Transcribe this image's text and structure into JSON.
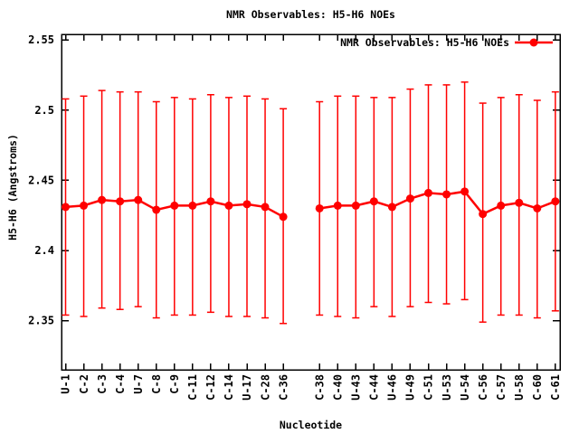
{
  "chart_data": {
    "type": "line",
    "title": "NMR Observables: H5-H6 NOEs",
    "xlabel": "Nucleotide",
    "ylabel": "H5-H6 (Angstroms)",
    "legend": {
      "label": "NMR Observables: H5-H6 NOEs",
      "position": "top-right-inside"
    },
    "grid": false,
    "background": "#ffffff",
    "axis_color": "#000000",
    "series_color": "#ff0000",
    "ylim": [
      2.315,
      2.554
    ],
    "yticks": [
      2.35,
      2.4,
      2.45,
      2.5,
      2.55
    ],
    "ytick_labels": [
      "2.35",
      "2.4",
      "2.45",
      "2.5",
      "2.55"
    ],
    "n_slots": 28,
    "gap_after": "C-36",
    "categories": [
      "U-1",
      "C-2",
      "C-3",
      "C-4",
      "U-7",
      "C-8",
      "C-9",
      "C-11",
      "C-12",
      "C-14",
      "U-17",
      "C-28",
      "C-36",
      "C-38",
      "C-40",
      "U-43",
      "C-44",
      "U-46",
      "U-49",
      "C-51",
      "U-53",
      "U-54",
      "C-56",
      "C-57",
      "U-58",
      "C-60",
      "C-61"
    ],
    "slots": [
      0,
      1,
      2,
      3,
      4,
      5,
      6,
      7,
      8,
      9,
      10,
      11,
      12,
      14,
      15,
      16,
      17,
      18,
      19,
      20,
      21,
      22,
      23,
      24,
      25,
      26,
      27
    ],
    "series": [
      {
        "name": "NMR Observables: H5-H6 NOEs",
        "marker": "filled-circle",
        "values": [
          2.431,
          2.432,
          2.436,
          2.435,
          2.436,
          2.429,
          2.432,
          2.432,
          2.435,
          2.432,
          2.433,
          2.431,
          2.424,
          2.43,
          2.432,
          2.432,
          2.435,
          2.431,
          2.437,
          2.441,
          2.44,
          2.442,
          2.426,
          2.432,
          2.434,
          2.43,
          2.435
        ],
        "err_high": [
          2.508,
          2.51,
          2.514,
          2.513,
          2.513,
          2.506,
          2.509,
          2.508,
          2.511,
          2.509,
          2.51,
          2.508,
          2.501,
          2.506,
          2.51,
          2.51,
          2.509,
          2.509,
          2.515,
          2.518,
          2.518,
          2.52,
          2.505,
          2.509,
          2.511,
          2.507,
          2.513
        ],
        "err_low": [
          2.354,
          2.353,
          2.359,
          2.358,
          2.36,
          2.352,
          2.354,
          2.354,
          2.356,
          2.353,
          2.353,
          2.352,
          2.348,
          2.354,
          2.353,
          2.352,
          2.36,
          2.353,
          2.36,
          2.363,
          2.362,
          2.365,
          2.349,
          2.354,
          2.354,
          2.352,
          2.357
        ]
      }
    ]
  }
}
